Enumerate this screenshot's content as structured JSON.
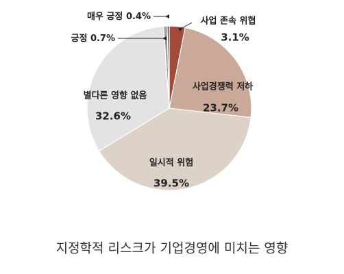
{
  "chart_data": {
    "type": "pie",
    "title": "지정학적 리스크가 기업경영에 미치는 영향",
    "categories": [
      "사업 존속 위협",
      "사업경쟁력 저하",
      "일시적 위험",
      "별다른 영향 없음",
      "긍정",
      "매우 긍정"
    ],
    "values": [
      3.1,
      23.7,
      39.5,
      32.6,
      0.7,
      0.4
    ],
    "value_labels": [
      "3.1%",
      "23.7%",
      "39.5%",
      "32.6%",
      "0.7%",
      "0.4%"
    ],
    "colors": [
      "#a3493a",
      "#caa999",
      "#ddd2c8",
      "#e5e2e5",
      "#9a9a9a",
      "#555555"
    ]
  }
}
